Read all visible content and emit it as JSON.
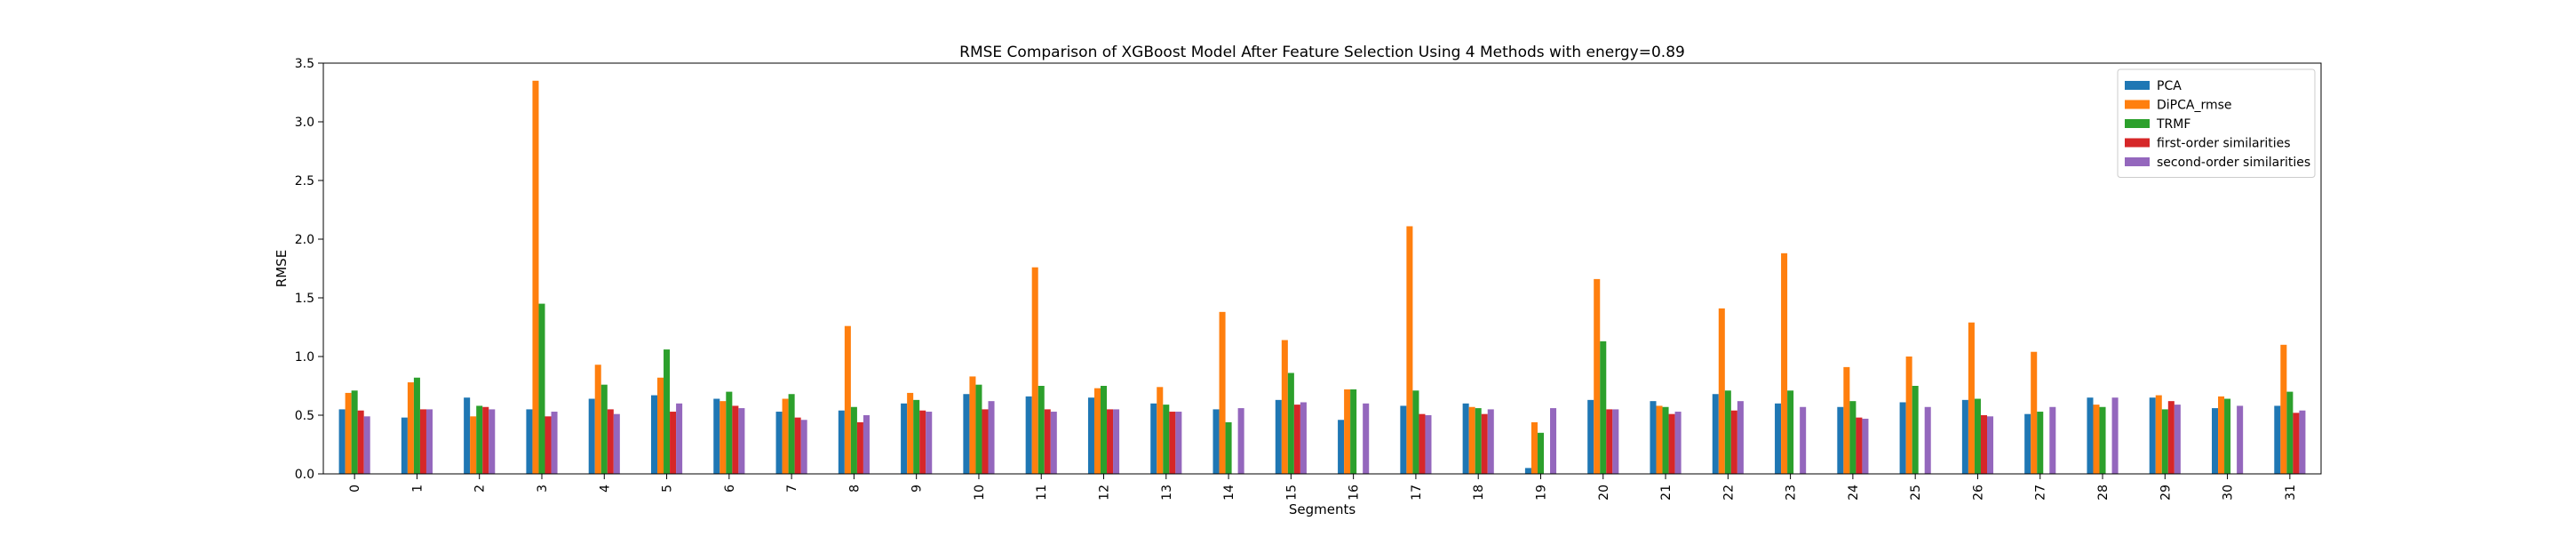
{
  "chart_data": {
    "type": "bar",
    "title": "RMSE Comparison of XGBoost Model After Feature Selection Using 4 Methods with energy=0.89",
    "xlabel": "Segments",
    "ylabel": "RMSE",
    "ylim": [
      0,
      3.5
    ],
    "yticks": [
      "0.0",
      "0.5",
      "1.0",
      "1.5",
      "2.0",
      "2.5",
      "3.0",
      "3.5"
    ],
    "legend_position": "top-right",
    "grid": false,
    "categories": [
      "0",
      "1",
      "2",
      "3",
      "4",
      "5",
      "6",
      "7",
      "8",
      "9",
      "10",
      "11",
      "12",
      "13",
      "14",
      "15",
      "16",
      "17",
      "18",
      "19",
      "20",
      "21",
      "22",
      "23",
      "24",
      "25",
      "26",
      "27",
      "28",
      "29",
      "30",
      "31"
    ],
    "series": [
      {
        "name": "PCA",
        "color": "#1f77b4",
        "values": [
          0.55,
          0.48,
          0.65,
          0.55,
          0.64,
          0.67,
          0.64,
          0.53,
          0.54,
          0.6,
          0.68,
          0.66,
          0.65,
          0.6,
          0.55,
          0.63,
          0.46,
          0.58,
          0.6,
          0.05,
          0.63,
          0.62,
          0.68,
          0.6,
          0.57,
          0.61,
          0.63,
          0.51,
          0.65,
          0.65,
          0.56,
          0.58
        ]
      },
      {
        "name": "DiPCA_rmse",
        "color": "#ff7f0e",
        "values": [
          0.69,
          0.78,
          0.49,
          3.35,
          0.93,
          0.82,
          0.62,
          0.64,
          1.26,
          0.69,
          0.83,
          1.76,
          0.73,
          0.74,
          1.38,
          1.14,
          0.72,
          2.11,
          0.57,
          0.44,
          1.66,
          0.58,
          1.41,
          1.88,
          0.91,
          1.0,
          1.29,
          1.04,
          0.59,
          0.67,
          0.66,
          1.1
        ]
      },
      {
        "name": "TRMF",
        "color": "#2ca02c",
        "values": [
          0.71,
          0.82,
          0.58,
          1.45,
          0.76,
          1.06,
          0.7,
          0.68,
          0.57,
          0.63,
          0.76,
          0.75,
          0.75,
          0.59,
          0.44,
          0.86,
          0.72,
          0.71,
          0.56,
          0.35,
          1.13,
          0.57,
          0.71,
          0.71,
          0.62,
          0.75,
          0.64,
          0.53,
          0.57,
          0.55,
          0.64,
          0.7
        ]
      },
      {
        "name": "first-order similarities",
        "color": "#d62728",
        "values": [
          0.54,
          0.55,
          0.57,
          0.49,
          0.55,
          0.53,
          0.58,
          0.48,
          0.44,
          0.54,
          0.55,
          0.55,
          0.55,
          0.53,
          0.0,
          0.59,
          0.0,
          0.51,
          0.51,
          0.0,
          0.55,
          0.51,
          0.54,
          0.0,
          0.48,
          0.0,
          0.5,
          0.0,
          0.0,
          0.62,
          0.0,
          0.52
        ]
      },
      {
        "name": "second-order similarities",
        "color": "#9467bd",
        "values": [
          0.49,
          0.55,
          0.55,
          0.53,
          0.51,
          0.6,
          0.56,
          0.46,
          0.5,
          0.53,
          0.62,
          0.53,
          0.55,
          0.53,
          0.56,
          0.61,
          0.6,
          0.5,
          0.55,
          0.56,
          0.55,
          0.53,
          0.62,
          0.57,
          0.47,
          0.57,
          0.49,
          0.57,
          0.65,
          0.59,
          0.58,
          0.54
        ]
      }
    ]
  }
}
